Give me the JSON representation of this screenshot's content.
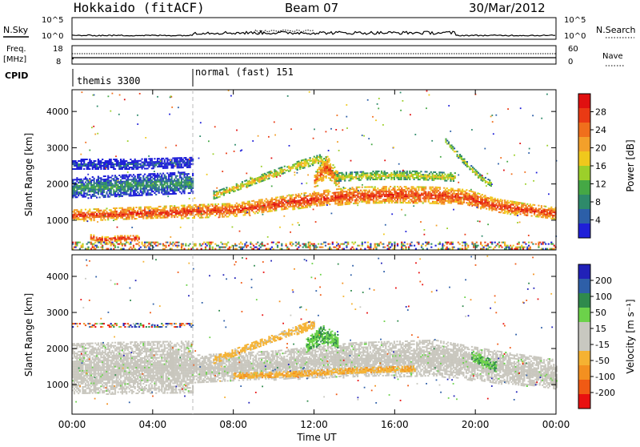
{
  "header": {
    "station": "Hokkaido (fitACF)",
    "beam": "Beam 07",
    "date": "30/Mar/2012"
  },
  "top_panels": {
    "nsky_label": "N.Sky",
    "nsearch_label": "N.Search",
    "noise_left_ticks": [
      "10^5",
      "10^0"
    ],
    "noise_right_ticks": [
      "10^5",
      "10^0"
    ],
    "freq_label": "Freq.",
    "freq_unit": "[MHz]",
    "freq_ticks": [
      "18",
      "8"
    ],
    "nave_label": "Nave",
    "nave_ticks": [
      "60",
      "0"
    ],
    "cpid_label": "CPID",
    "modes": [
      {
        "label": "themis 3300",
        "start_hour": 0
      },
      {
        "label": "normal (fast) 151",
        "start_hour": 6
      }
    ]
  },
  "colors": {
    "power_scale": [
      "#1f1fd8",
      "#2c5fa8",
      "#2e8a6a",
      "#45a845",
      "#9ccf2a",
      "#f0c81c",
      "#f3a02a",
      "#f06f1c",
      "#ea3a14",
      "#e01010"
    ],
    "velocity_scale": [
      "#2121b8",
      "#2e5fa8",
      "#2f8a4c",
      "#6cd24a",
      "#c8c8c0",
      "#c8c8c0",
      "#f5b232",
      "#f39020",
      "#f05a14",
      "#e81010"
    ],
    "gray": "#c8c6bd"
  },
  "chart_data": [
    {
      "type": "heatmap",
      "panel": "power",
      "ylabel": "Slant Range [km]",
      "xlabel": "Time UT",
      "x_ticks": [
        "00:00",
        "04:00",
        "08:00",
        "12:00",
        "16:00",
        "20:00",
        "00:00"
      ],
      "xlim_hours": [
        0,
        24
      ],
      "y_ticks": [
        "1000",
        "2000",
        "3000",
        "4000"
      ],
      "ylim": [
        180,
        4600
      ],
      "colorbar_label": "Power [dB]",
      "colorbar_ticks": [
        "4",
        "8",
        "12",
        "16",
        "20",
        "24",
        "28"
      ],
      "colorbar_range": [
        0,
        32
      ],
      "features": [
        {
          "name": "main-band",
          "kind": "band",
          "hours": [
            0,
            2,
            4,
            6,
            8,
            10,
            12,
            14,
            16,
            18,
            19.5,
            21,
            22.5,
            24
          ],
          "center_km": [
            1150,
            1180,
            1220,
            1260,
            1300,
            1450,
            1600,
            1700,
            1720,
            1700,
            1650,
            1420,
            1300,
            1200
          ],
          "half_width_km": [
            150,
            170,
            170,
            180,
            180,
            190,
            210,
            230,
            230,
            230,
            210,
            190,
            170,
            160
          ],
          "level": 28
        },
        {
          "name": "upper-band-early",
          "kind": "band",
          "hours": [
            0,
            2,
            4,
            6
          ],
          "center_km": [
            1900,
            1950,
            2000,
            2050
          ],
          "half_width_km": [
            280,
            300,
            300,
            300
          ],
          "level": 10
        },
        {
          "name": "blue-top-early",
          "kind": "band",
          "hours": [
            0,
            3,
            6
          ],
          "center_km": [
            2550,
            2550,
            2600
          ],
          "half_width_km": [
            150,
            150,
            150
          ],
          "level": 5
        },
        {
          "name": "hook-echoes",
          "kind": "band",
          "hours": [
            0.9,
            1.6,
            2.3,
            3.3
          ],
          "center_km": [
            550,
            480,
            520,
            520
          ],
          "half_width_km": [
            70,
            70,
            70,
            70
          ],
          "level": 30
        },
        {
          "name": "rising-arc",
          "kind": "band",
          "hours": [
            7,
            9,
            11,
            12.3,
            12.9
          ],
          "center_km": [
            1700,
            2100,
            2500,
            2700,
            2300
          ],
          "half_width_km": [
            90,
            100,
            110,
            130,
            120
          ],
          "level": 20
        },
        {
          "name": "peak-1230",
          "kind": "band",
          "hours": [
            12,
            12.6,
            13.2
          ],
          "center_km": [
            2100,
            2500,
            2100
          ],
          "half_width_km": [
            200,
            300,
            200
          ],
          "level": 26
        },
        {
          "name": "falling-arc-19h",
          "kind": "band",
          "hours": [
            18.5,
            19.3,
            20.2,
            20.8
          ],
          "center_km": [
            3200,
            2700,
            2200,
            2000
          ],
          "half_width_km": [
            60,
            70,
            80,
            80
          ],
          "level": 18
        },
        {
          "name": "mid-band-14-19h",
          "kind": "band",
          "hours": [
            13,
            15,
            17,
            19
          ],
          "center_km": [
            2200,
            2250,
            2250,
            2200
          ],
          "half_width_km": [
            120,
            120,
            120,
            120
          ],
          "level": 18
        },
        {
          "name": "ground-speckle",
          "kind": "band",
          "hours": [
            0,
            12,
            24
          ],
          "center_km": [
            300,
            300,
            300
          ],
          "half_width_km": [
            110,
            110,
            110
          ],
          "level": 14
        }
      ]
    },
    {
      "type": "heatmap",
      "panel": "velocity",
      "ylabel": "Slant Range [km]",
      "xlabel": "Time UT",
      "x_ticks": [
        "00:00",
        "04:00",
        "08:00",
        "12:00",
        "16:00",
        "20:00",
        "00:00"
      ],
      "xlim_hours": [
        0,
        24
      ],
      "y_ticks": [
        "1000",
        "2000",
        "3000",
        "4000"
      ],
      "ylim": [
        180,
        4600
      ],
      "colorbar_label": "Velocity [m s⁻¹]",
      "colorbar_ticks": [
        "200",
        "100",
        "50",
        "15",
        "-15",
        "-50",
        "-100",
        "-200"
      ],
      "colorbar_range": [
        -250,
        250
      ],
      "features": [
        {
          "name": "gray-mass-early",
          "kind": "band",
          "hours": [
            0,
            3,
            6
          ],
          "center_km": [
            1450,
            1480,
            1500
          ],
          "half_width_km": [
            700,
            720,
            720
          ],
          "level": 0
        },
        {
          "name": "gray-mass-late",
          "kind": "band",
          "hours": [
            6,
            10,
            14,
            18,
            21,
            24
          ],
          "center_km": [
            1450,
            1550,
            1700,
            1750,
            1500,
            1300
          ],
          "half_width_km": [
            380,
            400,
            480,
            500,
            450,
            400
          ],
          "level": 0
        },
        {
          "name": "rising-arc",
          "kind": "band",
          "hours": [
            7,
            9,
            11,
            12
          ],
          "center_km": [
            1700,
            2100,
            2500,
            2700
          ],
          "half_width_km": [
            90,
            100,
            110,
            120
          ],
          "level": -40
        },
        {
          "name": "green-patch-1230",
          "kind": "band",
          "hours": [
            11.6,
            12.4,
            13.2
          ],
          "center_km": [
            2100,
            2400,
            2200
          ],
          "half_width_km": [
            180,
            260,
            180
          ],
          "level": 30
        },
        {
          "name": "green-arc-20h",
          "kind": "band",
          "hours": [
            19.8,
            20.4,
            21
          ],
          "center_km": [
            1800,
            1650,
            1500
          ],
          "half_width_km": [
            150,
            150,
            150
          ],
          "level": 30
        },
        {
          "name": "orange-streaks",
          "kind": "band",
          "hours": [
            8,
            11,
            14,
            17
          ],
          "center_km": [
            1250,
            1300,
            1400,
            1450
          ],
          "half_width_km": [
            80,
            80,
            80,
            80
          ],
          "level": -60
        },
        {
          "name": "top-speckle",
          "kind": "band",
          "hours": [
            0,
            6
          ],
          "center_km": [
            2650,
            2650
          ],
          "half_width_km": [
            60,
            60
          ],
          "level": -40
        }
      ]
    }
  ]
}
